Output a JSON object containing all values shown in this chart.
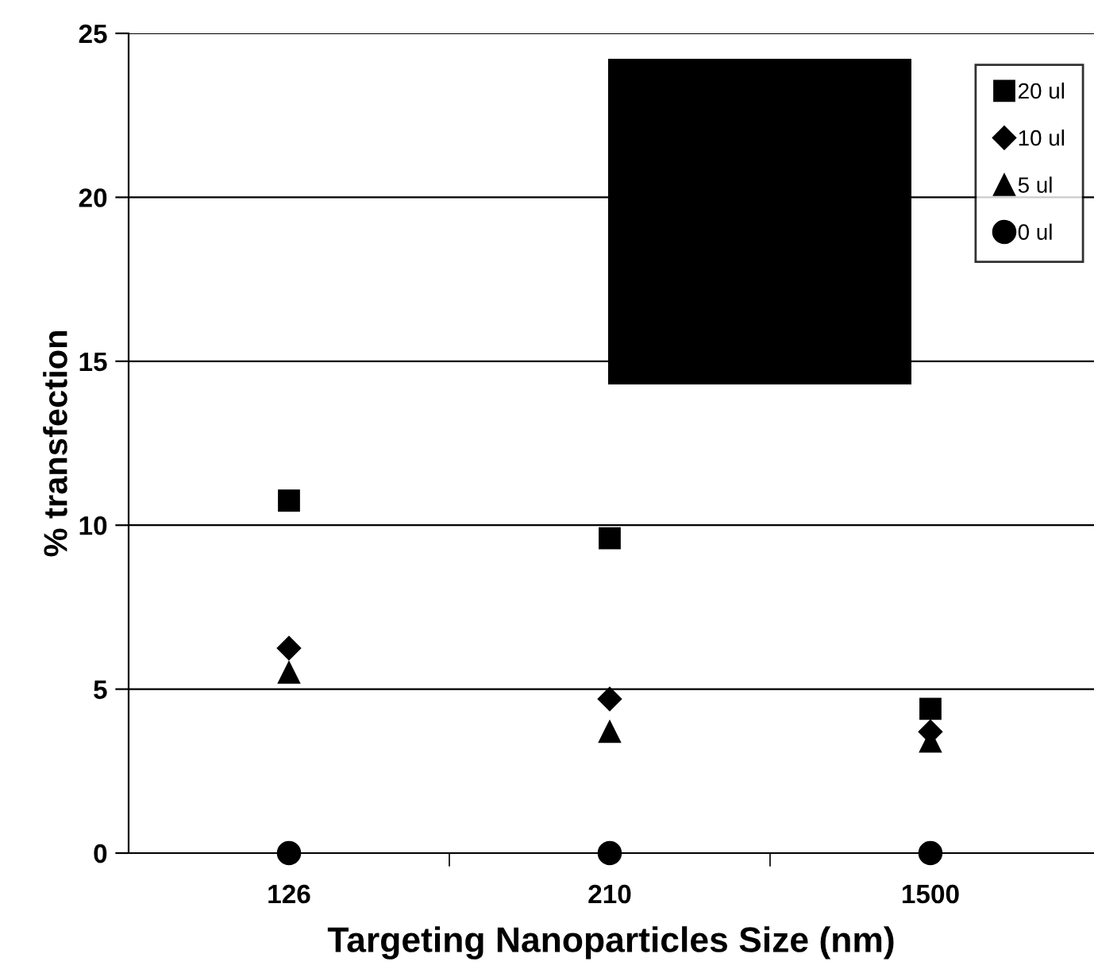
{
  "chart_data": {
    "type": "scatter",
    "xlabel": "Targeting Nanoparticles Size (nm)",
    "ylabel": "% transfection",
    "categories": [
      "126",
      "210",
      "1500"
    ],
    "series": [
      {
        "name": "20 ul",
        "color": "#000000",
        "marker": "square",
        "values": [
          10.75,
          9.6,
          4.4
        ]
      },
      {
        "name": "10 ul",
        "color": "#000000",
        "marker": "diamond",
        "values": [
          6.25,
          4.7,
          3.7
        ]
      },
      {
        "name": "5 ul",
        "color": "#000000",
        "marker": "triangle",
        "values": [
          5.5,
          3.7,
          3.4
        ]
      },
      {
        "name": "0 ul",
        "color": "#000000",
        "marker": "circle",
        "values": [
          0,
          0,
          0
        ]
      }
    ],
    "ylim": [
      0,
      25
    ],
    "yticks": [
      0,
      5,
      10,
      15,
      20,
      25
    ],
    "grid": "y",
    "legend": "top right"
  }
}
